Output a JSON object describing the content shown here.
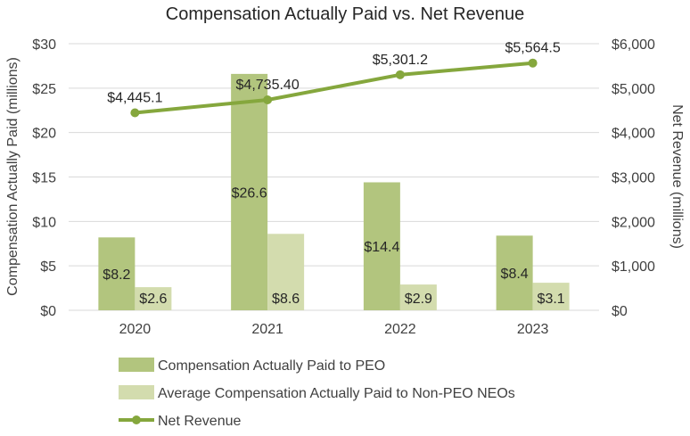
{
  "chart_data": {
    "type": "bar",
    "title": "Compensation Actually Paid vs. Net Revenue",
    "categories": [
      "2020",
      "2021",
      "2022",
      "2023"
    ],
    "ylabel_left": "Compensation Actually Paid (millions)",
    "ylabel_right": "Net Revenue (millions)",
    "ylim_left": [
      0,
      30
    ],
    "ylim_right": [
      0,
      6000
    ],
    "yticks_left": [
      "$0",
      "$5",
      "$10",
      "$15",
      "$20",
      "$25",
      "$30"
    ],
    "yticks_right": [
      "$0",
      "$1,000",
      "$2,000",
      "$3,000",
      "$4,000",
      "$5,000",
      "$6,000"
    ],
    "grid": true,
    "legend_position": "bottom",
    "series": [
      {
        "name": "Compensation Actually Paid to PEO",
        "kind": "bar",
        "axis": "left",
        "color": "#b2c57e",
        "values": [
          8.2,
          26.6,
          14.4,
          8.4
        ],
        "labels": [
          "$8.2",
          "$26.6",
          "$14.4",
          "$8.4"
        ]
      },
      {
        "name": "Average Compensation Actually Paid to Non-PEO NEOs",
        "kind": "bar",
        "axis": "left",
        "color": "#d3dcae",
        "values": [
          2.6,
          8.6,
          2.9,
          3.1
        ],
        "labels": [
          "$2.6",
          "$8.6",
          "$2.9",
          "$3.1"
        ]
      },
      {
        "name": "Net Revenue",
        "kind": "line",
        "axis": "right",
        "color": "#85a73d",
        "values": [
          4445.1,
          4735.4,
          5301.2,
          5564.5
        ],
        "labels": [
          "$4,445.1",
          "$4,735.40",
          "$5,301.2",
          "$5,564.5"
        ]
      }
    ]
  }
}
